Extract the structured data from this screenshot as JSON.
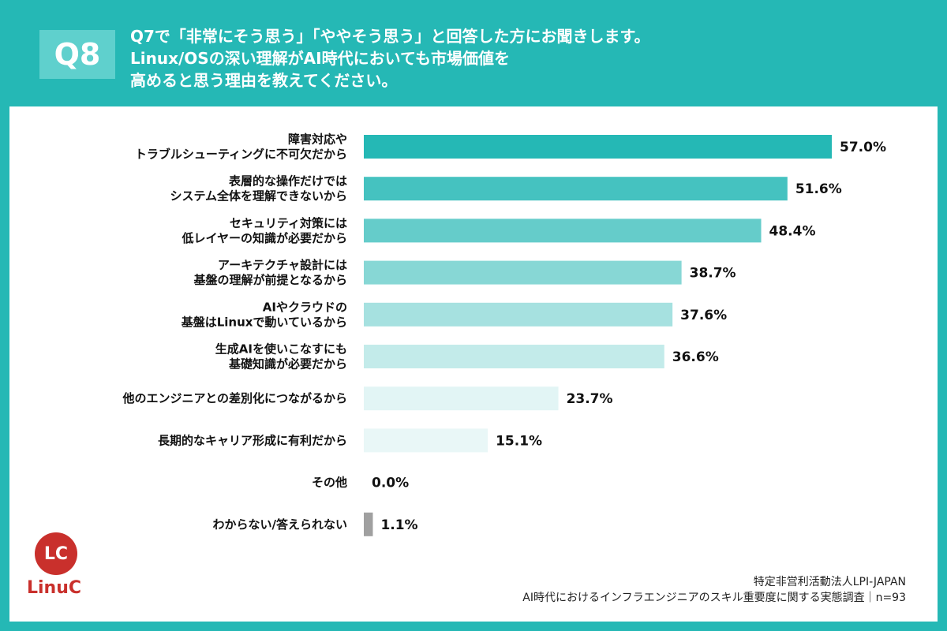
{
  "header": {
    "badge": "Q8",
    "title_lines": [
      "Q7で「非常にそう思う」「ややそう思う」と回答した方にお聞きします。",
      "Linux/OSの深い理解がAI時代においても市場価値を",
      "高めると思う理由を教えてください。"
    ]
  },
  "colors": {
    "frame": "#25b8b5",
    "bars": [
      "#25b8b5",
      "#45c2c0",
      "#65ccca",
      "#87d7d5",
      "#a6e1e0",
      "#c3ebea",
      "#e2f5f5",
      "#e9f7f7",
      "#e9f7f7",
      "#a0a0a0"
    ]
  },
  "logo": {
    "mark": "LC",
    "word": "LinuC"
  },
  "footer": {
    "org": "特定非営利活動法人LPI-JAPAN",
    "survey": "AI時代におけるインフラエンジニアのスキル重要度に関する実態調査｜n=93"
  },
  "chart_data": {
    "type": "bar",
    "orientation": "horizontal",
    "categories": [
      "障害対応や\nトラブルシューティングに不可欠だから",
      "表層的な操作だけでは\nシステム全体を理解できないから",
      "セキュリティ対策には\n低レイヤーの知識が必要だから",
      "アーキテクチャ設計には\n基盤の理解が前提となるから",
      "AIやクラウドの\n基盤はLinuxで動いているから",
      "生成AIを使いこなすにも\n基礎知識が必要だから",
      "他のエンジニアとの差別化につながるから",
      "長期的なキャリア形成に有利だから",
      "その他",
      "わからない/答えられない"
    ],
    "values": [
      57.0,
      51.6,
      48.4,
      38.7,
      37.6,
      36.6,
      23.7,
      15.1,
      0.0,
      1.1
    ],
    "value_labels": [
      "57.0%",
      "51.6%",
      "48.4%",
      "38.7%",
      "37.6%",
      "36.6%",
      "23.7%",
      "15.1%",
      "0.0%",
      "1.1%"
    ],
    "unit": "%",
    "xlim": [
      0,
      57.0
    ]
  }
}
